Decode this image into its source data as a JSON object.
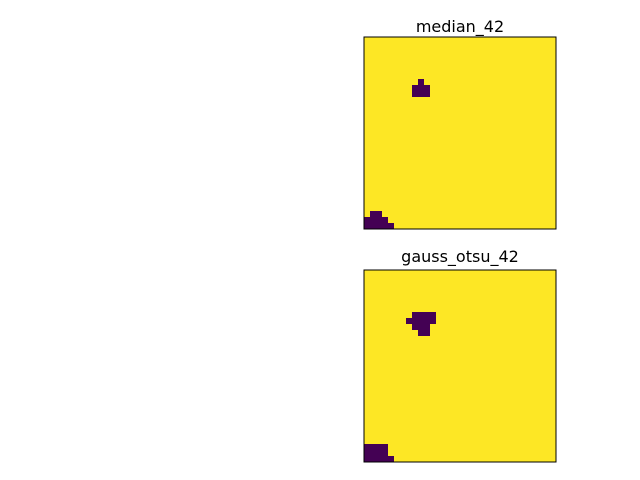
{
  "chart_data": [
    {
      "type": "heatmap",
      "title": "median_42",
      "grid": false,
      "axes_visible": false,
      "grid_size": [
        32,
        32
      ],
      "colormap": {
        "0": "#440154",
        "1": "#fde725"
      },
      "background_value": 1,
      "regions": [
        {
          "value": 0,
          "rows": [
            7,
            7
          ],
          "cols": [
            9,
            9
          ]
        },
        {
          "value": 0,
          "rows": [
            8,
            9
          ],
          "cols": [
            8,
            10
          ]
        },
        {
          "value": 0,
          "rows": [
            29,
            29
          ],
          "cols": [
            1,
            2
          ]
        },
        {
          "value": 0,
          "rows": [
            30,
            30
          ],
          "cols": [
            0,
            3
          ]
        },
        {
          "value": 0,
          "rows": [
            31,
            31
          ],
          "cols": [
            0,
            4
          ]
        }
      ]
    },
    {
      "type": "heatmap",
      "title": "gauss_otsu_42",
      "grid": false,
      "axes_visible": false,
      "grid_size": [
        32,
        32
      ],
      "colormap": {
        "0": "#440154",
        "1": "#fde725"
      },
      "background_value": 1,
      "regions": [
        {
          "value": 0,
          "rows": [
            7,
            7
          ],
          "cols": [
            8,
            11
          ]
        },
        {
          "value": 0,
          "rows": [
            8,
            8
          ],
          "cols": [
            7,
            11
          ]
        },
        {
          "value": 0,
          "rows": [
            9,
            9
          ],
          "cols": [
            8,
            10
          ]
        },
        {
          "value": 0,
          "rows": [
            10,
            10
          ],
          "cols": [
            9,
            10
          ]
        },
        {
          "value": 0,
          "rows": [
            29,
            30
          ],
          "cols": [
            0,
            3
          ]
        },
        {
          "value": 0,
          "rows": [
            31,
            31
          ],
          "cols": [
            0,
            4
          ]
        }
      ]
    }
  ]
}
